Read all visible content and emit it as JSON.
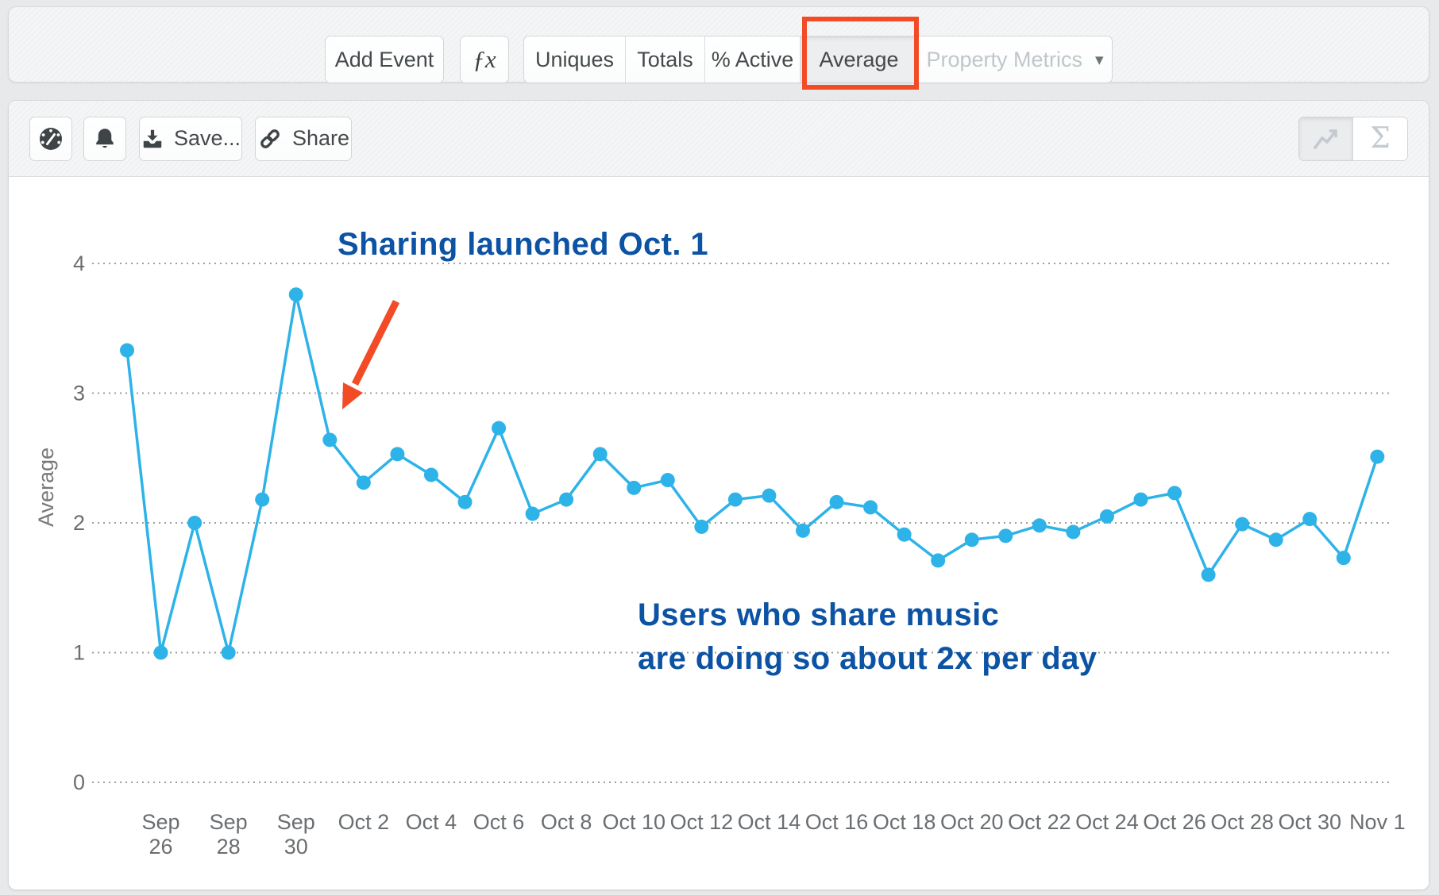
{
  "top_toolbar": {
    "add_event_label": "Add Event",
    "fx_label": "ƒx",
    "metric_buttons": [
      {
        "label": "Uniques",
        "selected": false
      },
      {
        "label": "Totals",
        "selected": false
      },
      {
        "label": "% Active",
        "selected": false
      },
      {
        "label": "Average",
        "selected": true,
        "highlighted": true
      }
    ],
    "property_metrics_label": "Property Metrics",
    "highlight_color": "#f24b26"
  },
  "chart_toolbar": {
    "save_label": "Save...",
    "share_label": "Share"
  },
  "icons": {
    "gauge": "speedometer-gauge",
    "bell": "notification-bell",
    "download": "download-tray-arrow",
    "link": "chain-link",
    "line_chart": "line-chart-zigzag",
    "sigma": "Σ",
    "caret_down": "▾"
  },
  "colors": {
    "accent_red": "#f24b26",
    "line_blue": "#2eb3e8",
    "annotation_blue": "#0c53a4",
    "grid_gray": "#9c9ea0",
    "tick_gray": "#6a6e71"
  },
  "chart_data": {
    "type": "line",
    "title": "",
    "xlabel": "",
    "ylabel": "Average",
    "ylim": [
      0,
      4
    ],
    "yticks": [
      0,
      1,
      2,
      3,
      4
    ],
    "grid": "horizontal-dotted",
    "legend": "none",
    "line_color": "#2eb3e8",
    "x_tick_every": 2,
    "x_tick_start_index": 1,
    "categories": [
      "Sep 25",
      "Sep 26",
      "Sep 27",
      "Sep 28",
      "Sep 29",
      "Sep 30",
      "Oct 1",
      "Oct 2",
      "Oct 3",
      "Oct 4",
      "Oct 5",
      "Oct 6",
      "Oct 7",
      "Oct 8",
      "Oct 9",
      "Oct 10",
      "Oct 11",
      "Oct 12",
      "Oct 13",
      "Oct 14",
      "Oct 15",
      "Oct 16",
      "Oct 17",
      "Oct 18",
      "Oct 19",
      "Oct 20",
      "Oct 21",
      "Oct 22",
      "Oct 23",
      "Oct 24",
      "Oct 25",
      "Oct 26",
      "Oct 27",
      "Oct 28",
      "Oct 29",
      "Oct 30",
      "Oct 31",
      "Nov 1"
    ],
    "values": [
      3.33,
      1.0,
      2.0,
      1.0,
      2.18,
      3.76,
      2.64,
      2.31,
      2.53,
      2.37,
      2.16,
      2.73,
      2.07,
      2.18,
      2.53,
      2.27,
      2.33,
      1.97,
      2.18,
      2.21,
      1.94,
      2.16,
      2.12,
      1.91,
      1.71,
      1.87,
      1.9,
      1.98,
      1.93,
      2.05,
      2.18,
      2.23,
      1.6,
      1.99,
      1.87,
      2.03,
      1.73,
      2.51
    ],
    "annotations": [
      {
        "text": "Sharing launched Oct. 1",
        "color": "#0c53a4",
        "arrow": {
          "points_to": "Oct 1",
          "color": "#f24b26"
        }
      },
      {
        "text_line1": "Users who share music",
        "text_line2": "are doing so about 2x per day",
        "color": "#0c53a4"
      }
    ]
  }
}
